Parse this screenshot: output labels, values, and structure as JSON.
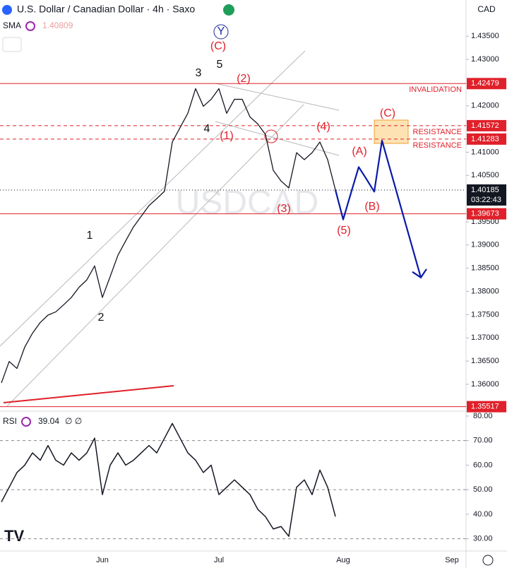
{
  "header": {
    "title": "U.S. Dollar / Canadian Dollar · 4h · Saxo",
    "sma_label": "SMA",
    "sma_value": "1.40809",
    "currency": "CAD"
  },
  "chart_data": [
    {
      "type": "line",
      "watermark": "USDCAD",
      "color": "#131722",
      "categories": [
        null,
        null,
        null,
        null,
        null,
        null,
        null,
        null,
        null,
        null,
        null,
        null,
        null,
        "Jun",
        null,
        null,
        null,
        null,
        null,
        null,
        null,
        null,
        null,
        null,
        null,
        null,
        null,
        null,
        "Jul",
        null,
        null,
        null,
        null,
        null,
        null,
        null,
        null,
        null,
        null,
        null,
        null,
        null,
        null,
        null,
        "Aug",
        null,
        null,
        null,
        null,
        null,
        null,
        null,
        null,
        null,
        null,
        null,
        null,
        null,
        "Sep",
        null
      ],
      "values": [
        1.3603,
        1.3649,
        1.3634,
        1.368,
        1.371,
        1.3733,
        1.3749,
        1.3756,
        1.3771,
        1.3787,
        1.3809,
        1.3825,
        1.3855,
        1.3787,
        1.3832,
        1.3878,
        1.3909,
        1.3939,
        1.3962,
        1.3985,
        1.4,
        1.4016,
        1.4122,
        1.4153,
        1.4184,
        1.4237,
        1.4199,
        1.4214,
        1.4237,
        1.4184,
        1.4214,
        1.4214,
        1.4176,
        1.4161,
        1.4138,
        1.4061,
        1.4038,
        1.4023,
        1.4099,
        1.4084,
        1.4099,
        1.4122,
        1.4084,
        1.4019,
        null,
        null,
        null,
        null,
        null,
        null,
        null,
        null,
        null,
        null,
        null,
        null,
        null,
        null,
        null,
        null
      ],
      "projection": {
        "color": "#0a1aa8",
        "values": [
          null,
          null,
          null,
          null,
          null,
          null,
          null,
          null,
          null,
          null,
          null,
          null,
          null,
          null,
          null,
          null,
          null,
          null,
          null,
          null,
          null,
          null,
          null,
          null,
          null,
          null,
          null,
          null,
          null,
          null,
          null,
          null,
          null,
          null,
          null,
          null,
          null,
          null,
          null,
          null,
          null,
          null,
          null,
          1.4019,
          1.3955,
          1.4012,
          1.4068,
          1.4042,
          1.4015,
          1.4125,
          1.4066,
          1.4007,
          1.3948,
          1.3889,
          1.383,
          null,
          null,
          null,
          null,
          null
        ]
      },
      "ylim": [
        1.3542,
        1.4428
      ],
      "yticks": [
        {
          "value": 1.435,
          "label": "1.43500"
        },
        {
          "value": 1.43,
          "label": "1.43000"
        },
        {
          "value": 1.42,
          "label": "1.42000"
        },
        {
          "value": 1.41,
          "label": "1.41000"
        },
        {
          "value": 1.405,
          "label": "1.40500"
        },
        {
          "value": 1.395,
          "label": "1.39500"
        },
        {
          "value": 1.39,
          "label": "1.39000"
        },
        {
          "value": 1.385,
          "label": "1.38500"
        },
        {
          "value": 1.38,
          "label": "1.38000"
        },
        {
          "value": 1.375,
          "label": "1.37500"
        },
        {
          "value": 1.37,
          "label": "1.37000"
        },
        {
          "value": 1.365,
          "label": "1.36500"
        },
        {
          "value": 1.36,
          "label": "1.36000"
        }
      ],
      "levels": [
        {
          "value": 1.42479,
          "label": "1.42479",
          "color": "#e0202a",
          "style": "solid",
          "note": "INVALIDATION"
        },
        {
          "value": 1.41572,
          "label": "1.41572",
          "color": "#e0202a",
          "style": "dashed",
          "note": "RESISTANCE"
        },
        {
          "value": 1.41283,
          "label": "1.41283",
          "color": "#e0202a",
          "style": "dashed",
          "note": "RESISTANCE"
        },
        {
          "value": 1.40185,
          "label": "1.40185",
          "color": "#131722",
          "style": "dotted",
          "countdown": "03:22:43"
        },
        {
          "value": 1.39673,
          "label": "1.39673",
          "color": "#e0202a",
          "style": "solid"
        },
        {
          "value": 1.35517,
          "label": "1.35517",
          "color": "#e0202a",
          "style": "solid"
        }
      ],
      "wave_labels": [
        {
          "text": "1",
          "color": "#111"
        },
        {
          "text": "2",
          "color": "#111"
        },
        {
          "text": "3",
          "color": "#111"
        },
        {
          "text": "4",
          "color": "#111"
        },
        {
          "text": "5",
          "color": "#111"
        },
        {
          "text": "(1)",
          "color": "#e0202a"
        },
        {
          "text": "(2)",
          "color": "#e0202a"
        },
        {
          "text": "(3)",
          "color": "#e0202a"
        },
        {
          "text": "(4)",
          "color": "#e0202a"
        },
        {
          "text": "(5)",
          "color": "#e0202a"
        },
        {
          "text": "(A)",
          "color": "#e0202a"
        },
        {
          "text": "(B)",
          "color": "#e0202a"
        },
        {
          "text": "(C)",
          "color": "#e0202a"
        },
        {
          "text": "(C)",
          "color": "#e0202a"
        },
        {
          "text": "Y",
          "color": "#1a2a9a"
        }
      ]
    },
    {
      "type": "line",
      "title": "RSI",
      "value_label": "39.04",
      "extra": "∅ ∅",
      "color": "#131722",
      "values": [
        45,
        51,
        57,
        60,
        65,
        62,
        68,
        62,
        60,
        65,
        62,
        65,
        71,
        48,
        60,
        65,
        60,
        62,
        65,
        68,
        65,
        71,
        77,
        71,
        65,
        62,
        57,
        60,
        48,
        51,
        54,
        51,
        48,
        42,
        39,
        34,
        35,
        31,
        51,
        54,
        48,
        58,
        51,
        39.04,
        null,
        null,
        null,
        null,
        null,
        null,
        null,
        null,
        null,
        null,
        null,
        null,
        null,
        null,
        null,
        null
      ],
      "ylim": [
        25,
        82
      ],
      "yticks": [
        {
          "value": 80,
          "label": "80.00"
        },
        {
          "value": 70,
          "label": "70.00"
        },
        {
          "value": 60,
          "label": "60.00"
        },
        {
          "value": 50,
          "label": "50.00"
        },
        {
          "value": 40,
          "label": "40.00"
        },
        {
          "value": 30,
          "label": "30.00"
        }
      ],
      "dashed": [
        70,
        50,
        30
      ]
    }
  ]
}
